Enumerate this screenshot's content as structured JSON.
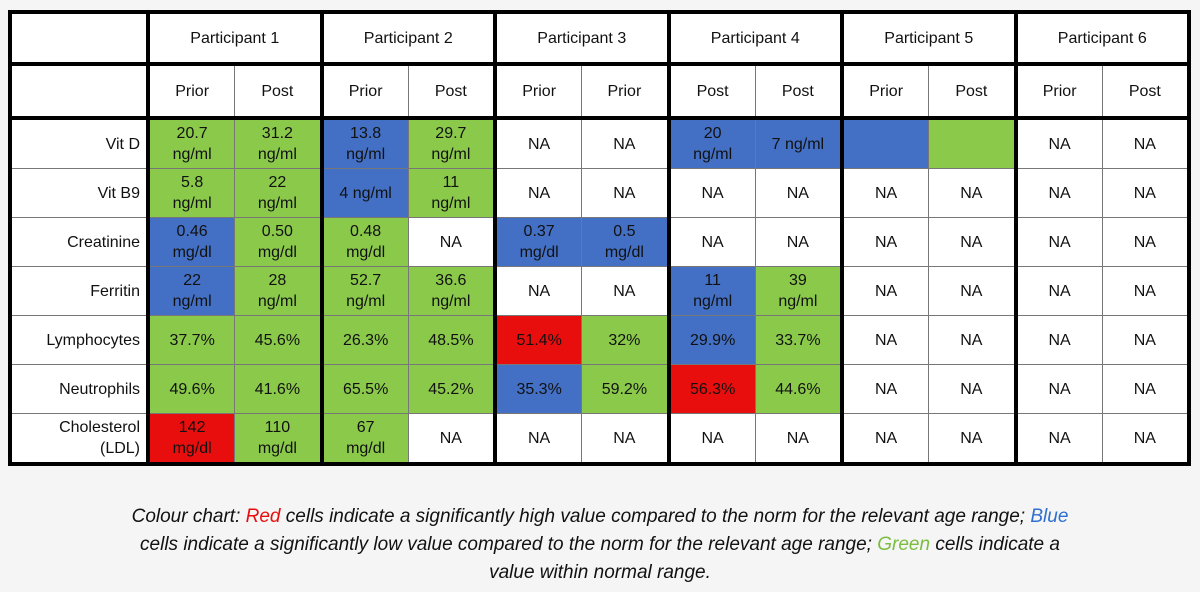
{
  "participants": [
    "Participant 1",
    "Participant 2",
    "Participant 3",
    "Participant 4",
    "Participant 5",
    "Participant 6"
  ],
  "subheaders": [
    "Prior",
    "Post",
    "Prior",
    "Post",
    "Prior",
    "Prior",
    "Post",
    "Post",
    "Prior",
    "Post",
    "Prior",
    "Post"
  ],
  "rows": [
    {
      "label": "Vit D",
      "cells": [
        [
          "20.7\nng/ml",
          "g"
        ],
        [
          "31.2\nng/ml",
          "g"
        ],
        [
          "13.8\nng/ml",
          "b"
        ],
        [
          "29.7\nng/ml",
          "g"
        ],
        [
          "NA",
          ""
        ],
        [
          "NA",
          ""
        ],
        [
          "20\nng/ml",
          "b"
        ],
        [
          "7 ng/ml",
          "b"
        ],
        [
          "",
          "b"
        ],
        [
          "",
          "g"
        ],
        [
          "NA",
          ""
        ],
        [
          "NA",
          ""
        ]
      ]
    },
    {
      "label": "Vit B9",
      "cells": [
        [
          "5.8\nng/ml",
          "g"
        ],
        [
          "22\nng/ml",
          "g"
        ],
        [
          "4 ng/ml",
          "b"
        ],
        [
          "11\nng/ml",
          "g"
        ],
        [
          "NA",
          ""
        ],
        [
          "NA",
          ""
        ],
        [
          "NA",
          ""
        ],
        [
          "NA",
          ""
        ],
        [
          "NA",
          ""
        ],
        [
          "NA",
          ""
        ],
        [
          "NA",
          ""
        ],
        [
          "NA",
          ""
        ]
      ]
    },
    {
      "label": "Creatinine",
      "cells": [
        [
          "0.46\nmg/dl",
          "b"
        ],
        [
          "0.50\nmg/dl",
          "g"
        ],
        [
          "0.48\nmg/dl",
          "g"
        ],
        [
          "NA",
          ""
        ],
        [
          "0.37\nmg/dl",
          "b"
        ],
        [
          "0.5\nmg/dl",
          "b"
        ],
        [
          "NA",
          ""
        ],
        [
          "NA",
          ""
        ],
        [
          "NA",
          ""
        ],
        [
          "NA",
          ""
        ],
        [
          "NA",
          ""
        ],
        [
          "NA",
          ""
        ]
      ]
    },
    {
      "label": "Ferritin",
      "cells": [
        [
          "22\nng/ml",
          "b"
        ],
        [
          "28\nng/ml",
          "g"
        ],
        [
          "52.7\nng/ml",
          "g"
        ],
        [
          "36.6\nng/ml",
          "g"
        ],
        [
          "NA",
          ""
        ],
        [
          "NA",
          ""
        ],
        [
          "11\nng/ml",
          "b"
        ],
        [
          "39\nng/ml",
          "g"
        ],
        [
          "NA",
          ""
        ],
        [
          "NA",
          ""
        ],
        [
          "NA",
          ""
        ],
        [
          "NA",
          ""
        ]
      ]
    },
    {
      "label": "Lymphocytes",
      "cells": [
        [
          "37.7%",
          "g"
        ],
        [
          "45.6%",
          "g"
        ],
        [
          "26.3%",
          "g"
        ],
        [
          "48.5%",
          "g"
        ],
        [
          "51.4%",
          "r"
        ],
        [
          "32%",
          "g"
        ],
        [
          "29.9%",
          "b"
        ],
        [
          "33.7%",
          "g"
        ],
        [
          "NA",
          ""
        ],
        [
          "NA",
          ""
        ],
        [
          "NA",
          ""
        ],
        [
          "NA",
          ""
        ]
      ]
    },
    {
      "label": "Neutrophils",
      "cells": [
        [
          "49.6%",
          "g"
        ],
        [
          "41.6%",
          "g"
        ],
        [
          "65.5%",
          "g"
        ],
        [
          "45.2%",
          "g"
        ],
        [
          "35.3%",
          "b"
        ],
        [
          "59.2%",
          "g"
        ],
        [
          "56.3%",
          "r"
        ],
        [
          "44.6%",
          "g"
        ],
        [
          "NA",
          ""
        ],
        [
          "NA",
          ""
        ],
        [
          "NA",
          ""
        ],
        [
          "NA",
          ""
        ]
      ]
    },
    {
      "label": "Cholesterol\n(LDL)",
      "cells": [
        [
          "142\nmg/dl",
          "r"
        ],
        [
          "110\nmg/dl",
          "g"
        ],
        [
          "67\nmg/dl",
          "g"
        ],
        [
          "NA",
          ""
        ],
        [
          "NA",
          ""
        ],
        [
          "NA",
          ""
        ],
        [
          "NA",
          ""
        ],
        [
          "NA",
          ""
        ],
        [
          "NA",
          ""
        ],
        [
          "NA",
          ""
        ],
        [
          "NA",
          ""
        ],
        [
          "NA",
          ""
        ]
      ]
    }
  ],
  "colors": {
    "red": "#e80e0e",
    "blue": "#4370c4",
    "green": "#8bc94b"
  },
  "caption": {
    "p1": "Colour chart: ",
    "red": "Red",
    "p2": " cells indicate a significantly high value compared to the norm for the relevant age range; ",
    "blue": "Blue",
    "p3": " cells indicate a significantly low value compared to the norm for the relevant age range; ",
    "green": "Green",
    "p4": " cells indicate a value within normal range."
  }
}
